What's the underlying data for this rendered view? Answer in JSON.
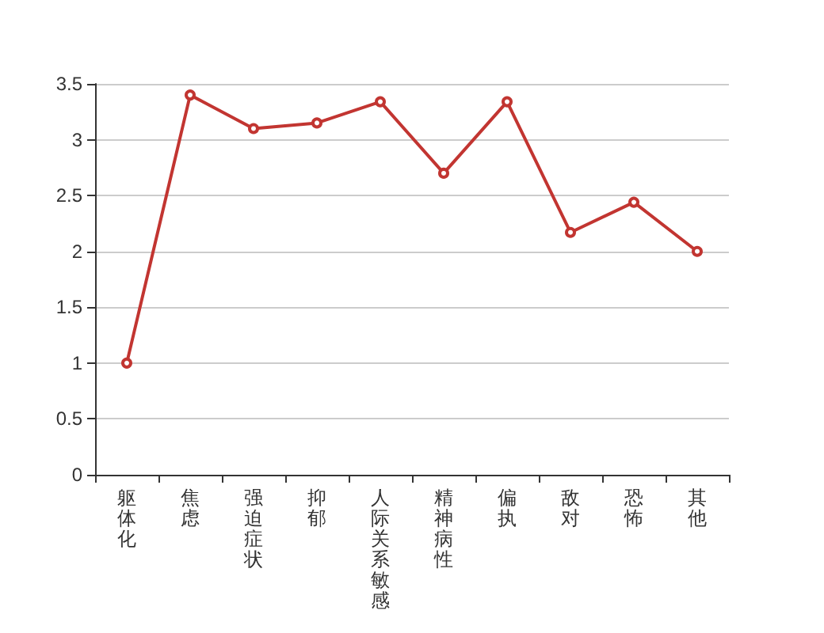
{
  "chart_data": {
    "type": "line",
    "categories": [
      "躯体化",
      "焦虑",
      "强迫症状",
      "抑郁",
      "人际关系敏感",
      "精神病性",
      "偏执",
      "敌对",
      "恐怖",
      "其他"
    ],
    "series": [
      {
        "color": "#c23531",
        "values": [
          1,
          3.4,
          3.1,
          3.15,
          3.34,
          2.7,
          3.34,
          2.17,
          2.44,
          2
        ]
      }
    ],
    "ylim": [
      0,
      3.5
    ],
    "yticks": [
      0,
      0.5,
      1,
      1.5,
      2,
      2.5,
      3,
      3.5
    ],
    "grid": "y",
    "marker": "circle",
    "line_style": "solid"
  }
}
